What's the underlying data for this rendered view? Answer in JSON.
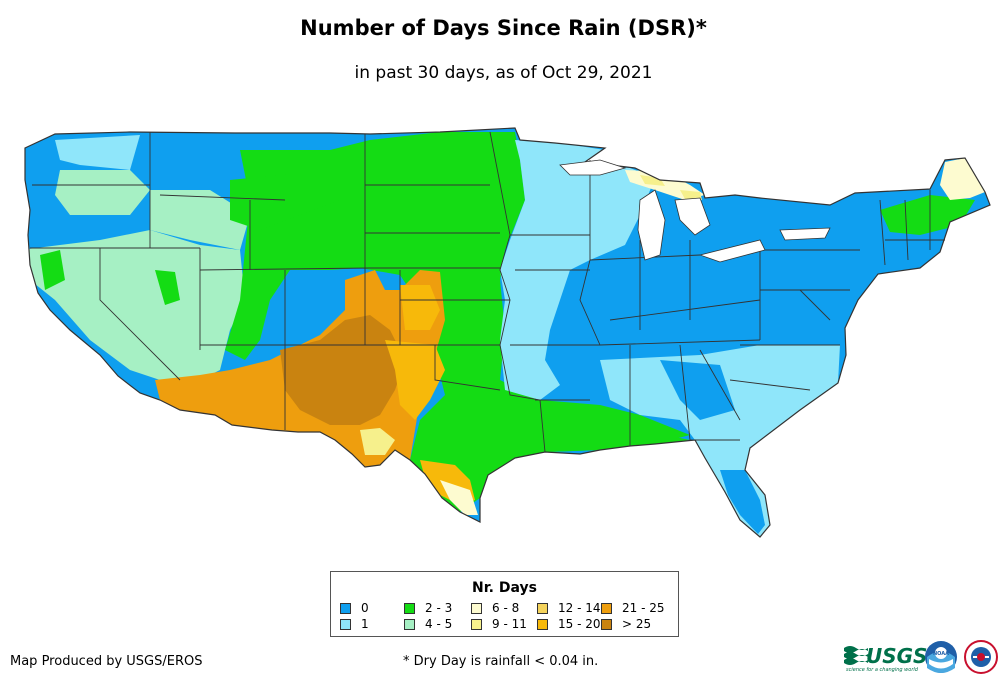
{
  "title": "Number of Days Since Rain (DSR)*",
  "subtitle": "in past 30 days, as of Oct 29, 2021",
  "legend": {
    "title": "Nr. Days",
    "items": [
      {
        "label": "0",
        "color": "#0f9fef"
      },
      {
        "label": "1",
        "color": "#8fe6fa"
      },
      {
        "label": "2 - 3",
        "color": "#14dc14"
      },
      {
        "label": "4 - 5",
        "color": "#a6f0c4"
      },
      {
        "label": "6 - 8",
        "color": "#fdfbd0"
      },
      {
        "label": "9 - 11",
        "color": "#f6f08c"
      },
      {
        "label": "12 - 14",
        "color": "#f4d35c"
      },
      {
        "label": "15 - 20",
        "color": "#f7b90a"
      },
      {
        "label": "21 - 25",
        "color": "#ee9e0e"
      },
      {
        "label": "> 25",
        "color": "#c98310"
      }
    ]
  },
  "footer": {
    "credit": "Map Produced by USGS/EROS",
    "note": "* Dry Day is rainfall < 0.04 in."
  },
  "logos": {
    "usgs_text": "USGS",
    "usgs_tagline": "science for a changing world",
    "noaa_text": "NOAA"
  },
  "colors": {
    "border": "#333333",
    "background": "#ffffff"
  }
}
